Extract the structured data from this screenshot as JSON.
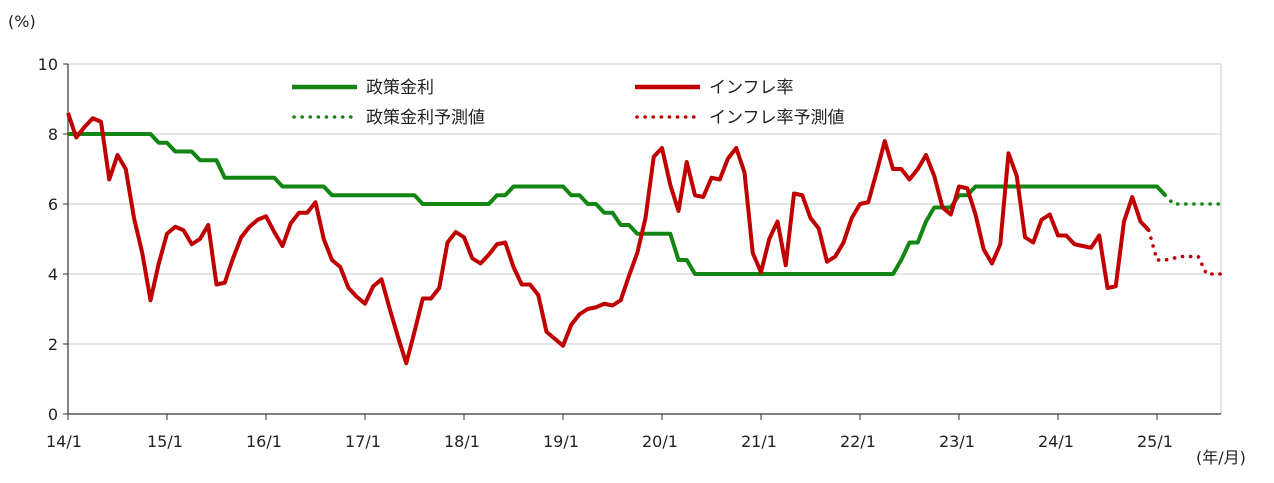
{
  "chart_data": {
    "type": "line",
    "y_unit": "(%)",
    "x_unit": "(年/月)",
    "ylim": [
      0,
      10
    ],
    "y_ticks": [
      0,
      2,
      4,
      6,
      8,
      10
    ],
    "x_ticks": [
      "14/1",
      "15/1",
      "16/1",
      "17/1",
      "18/1",
      "19/1",
      "20/1",
      "21/1",
      "22/1",
      "23/1",
      "24/1",
      "25/1"
    ],
    "x_range": [
      "2014-01",
      "2025-09"
    ],
    "grid": "horizontal",
    "legend_position": "top-center",
    "colors": {
      "policy": "#138513",
      "inflation": "#c00000"
    },
    "series": [
      {
        "name": "政策金利",
        "style": "solid",
        "color": "#138513",
        "points": [
          [
            "2014-01",
            8.0
          ],
          [
            "2014-11",
            8.0
          ],
          [
            "2014-12",
            7.75
          ],
          [
            "2015-01",
            7.75
          ],
          [
            "2015-02",
            7.5
          ],
          [
            "2015-04",
            7.5
          ],
          [
            "2015-05",
            7.25
          ],
          [
            "2015-07",
            7.25
          ],
          [
            "2015-08",
            6.75
          ],
          [
            "2016-01",
            6.75
          ],
          [
            "2016-02",
            6.75
          ],
          [
            "2016-03",
            6.5
          ],
          [
            "2016-08",
            6.5
          ],
          [
            "2016-09",
            6.25
          ],
          [
            "2017-01",
            6.25
          ],
          [
            "2017-07",
            6.25
          ],
          [
            "2017-08",
            6.0
          ],
          [
            "2018-01",
            6.0
          ],
          [
            "2018-04",
            6.0
          ],
          [
            "2018-05",
            6.25
          ],
          [
            "2018-06",
            6.25
          ],
          [
            "2018-07",
            6.5
          ],
          [
            "2018-12",
            6.5
          ],
          [
            "2019-01",
            6.5
          ],
          [
            "2019-02",
            6.25
          ],
          [
            "2019-03",
            6.25
          ],
          [
            "2019-04",
            6.0
          ],
          [
            "2019-05",
            6.0
          ],
          [
            "2019-06",
            5.75
          ],
          [
            "2019-07",
            5.75
          ],
          [
            "2019-08",
            5.4
          ],
          [
            "2019-09",
            5.4
          ],
          [
            "2019-10",
            5.15
          ],
          [
            "2020-01",
            5.15
          ],
          [
            "2020-02",
            5.15
          ],
          [
            "2020-03",
            4.4
          ],
          [
            "2020-04",
            4.4
          ],
          [
            "2020-05",
            4.0
          ],
          [
            "2020-06",
            4.0
          ],
          [
            "2021-01",
            4.0
          ],
          [
            "2022-01",
            4.0
          ],
          [
            "2022-04",
            4.0
          ],
          [
            "2022-05",
            4.0
          ],
          [
            "2022-06",
            4.4
          ],
          [
            "2022-07",
            4.9
          ],
          [
            "2022-08",
            4.9
          ],
          [
            "2022-09",
            5.5
          ],
          [
            "2022-10",
            5.9
          ],
          [
            "2022-12",
            5.9
          ],
          [
            "2023-01",
            6.25
          ],
          [
            "2023-02",
            6.25
          ],
          [
            "2023-03",
            6.5
          ],
          [
            "2024-01",
            6.5
          ],
          [
            "2025-01",
            6.5
          ],
          [
            "2025-02",
            6.25
          ]
        ]
      },
      {
        "name": "インフレ率",
        "style": "solid",
        "color": "#c00000",
        "points": [
          [
            "2014-01",
            8.6
          ],
          [
            "2014-02",
            7.9
          ],
          [
            "2014-03",
            8.2
          ],
          [
            "2014-04",
            8.45
          ],
          [
            "2014-05",
            8.35
          ],
          [
            "2014-06",
            6.7
          ],
          [
            "2014-07",
            7.4
          ],
          [
            "2014-08",
            7.0
          ],
          [
            "2014-09",
            5.6
          ],
          [
            "2014-10",
            4.6
          ],
          [
            "2014-11",
            3.25
          ],
          [
            "2014-12",
            4.3
          ],
          [
            "2015-01",
            5.15
          ],
          [
            "2015-02",
            5.35
          ],
          [
            "2015-03",
            5.25
          ],
          [
            "2015-04",
            4.85
          ],
          [
            "2015-05",
            5.0
          ],
          [
            "2015-06",
            5.4
          ],
          [
            "2015-07",
            3.7
          ],
          [
            "2015-08",
            3.75
          ],
          [
            "2015-09",
            4.45
          ],
          [
            "2015-10",
            5.05
          ],
          [
            "2015-11",
            5.35
          ],
          [
            "2015-12",
            5.55
          ],
          [
            "2016-01",
            5.65
          ],
          [
            "2016-02",
            5.2
          ],
          [
            "2016-03",
            4.8
          ],
          [
            "2016-04",
            5.45
          ],
          [
            "2016-05",
            5.75
          ],
          [
            "2016-06",
            5.75
          ],
          [
            "2016-07",
            6.05
          ],
          [
            "2016-08",
            5.0
          ],
          [
            "2016-09",
            4.4
          ],
          [
            "2016-10",
            4.2
          ],
          [
            "2016-11",
            3.6
          ],
          [
            "2016-12",
            3.35
          ],
          [
            "2017-01",
            3.15
          ],
          [
            "2017-02",
            3.65
          ],
          [
            "2017-03",
            3.85
          ],
          [
            "2017-04",
            3.0
          ],
          [
            "2017-05",
            2.2
          ],
          [
            "2017-06",
            1.45
          ],
          [
            "2017-07",
            2.35
          ],
          [
            "2017-08",
            3.3
          ],
          [
            "2017-09",
            3.3
          ],
          [
            "2017-10",
            3.6
          ],
          [
            "2017-11",
            4.9
          ],
          [
            "2017-12",
            5.2
          ],
          [
            "2018-01",
            5.05
          ],
          [
            "2018-02",
            4.45
          ],
          [
            "2018-03",
            4.3
          ],
          [
            "2018-04",
            4.55
          ],
          [
            "2018-05",
            4.85
          ],
          [
            "2018-06",
            4.9
          ],
          [
            "2018-07",
            4.2
          ],
          [
            "2018-08",
            3.7
          ],
          [
            "2018-09",
            3.7
          ],
          [
            "2018-10",
            3.4
          ],
          [
            "2018-11",
            2.35
          ],
          [
            "2018-12",
            2.15
          ],
          [
            "2019-01",
            1.95
          ],
          [
            "2019-02",
            2.55
          ],
          [
            "2019-03",
            2.85
          ],
          [
            "2019-04",
            3.0
          ],
          [
            "2019-05",
            3.05
          ],
          [
            "2019-06",
            3.15
          ],
          [
            "2019-07",
            3.1
          ],
          [
            "2019-08",
            3.25
          ],
          [
            "2019-09",
            3.95
          ],
          [
            "2019-10",
            4.6
          ],
          [
            "2019-11",
            5.6
          ],
          [
            "2019-12",
            7.35
          ],
          [
            "2020-01",
            7.6
          ],
          [
            "2020-02",
            6.55
          ],
          [
            "2020-03",
            5.8
          ],
          [
            "2020-04",
            7.2
          ],
          [
            "2020-05",
            6.25
          ],
          [
            "2020-06",
            6.2
          ],
          [
            "2020-07",
            6.75
          ],
          [
            "2020-08",
            6.7
          ],
          [
            "2020-09",
            7.3
          ],
          [
            "2020-10",
            7.6
          ],
          [
            "2020-11",
            6.9
          ],
          [
            "2020-12",
            4.6
          ],
          [
            "2021-01",
            4.05
          ],
          [
            "2021-02",
            5.0
          ],
          [
            "2021-03",
            5.5
          ],
          [
            "2021-04",
            4.25
          ],
          [
            "2021-05",
            6.3
          ],
          [
            "2021-06",
            6.25
          ],
          [
            "2021-07",
            5.6
          ],
          [
            "2021-08",
            5.3
          ],
          [
            "2021-09",
            4.35
          ],
          [
            "2021-10",
            4.5
          ],
          [
            "2021-11",
            4.9
          ],
          [
            "2021-12",
            5.6
          ],
          [
            "2022-01",
            6.0
          ],
          [
            "2022-02",
            6.05
          ],
          [
            "2022-03",
            6.9
          ],
          [
            "2022-04",
            7.8
          ],
          [
            "2022-05",
            7.0
          ],
          [
            "2022-06",
            7.0
          ],
          [
            "2022-07",
            6.7
          ],
          [
            "2022-08",
            7.0
          ],
          [
            "2022-09",
            7.4
          ],
          [
            "2022-10",
            6.8
          ],
          [
            "2022-11",
            5.9
          ],
          [
            "2022-12",
            5.7
          ],
          [
            "2023-01",
            6.5
          ],
          [
            "2023-02",
            6.45
          ],
          [
            "2023-03",
            5.7
          ],
          [
            "2023-04",
            4.7
          ],
          [
            "2023-05",
            4.3
          ],
          [
            "2023-06",
            4.85
          ],
          [
            "2023-07",
            7.45
          ],
          [
            "2023-08",
            6.8
          ],
          [
            "2023-09",
            5.05
          ],
          [
            "2023-10",
            4.9
          ],
          [
            "2023-11",
            5.55
          ],
          [
            "2023-12",
            5.7
          ],
          [
            "2024-01",
            5.1
          ],
          [
            "2024-02",
            5.1
          ],
          [
            "2024-03",
            4.85
          ],
          [
            "2024-04",
            4.8
          ],
          [
            "2024-05",
            4.75
          ],
          [
            "2024-06",
            5.1
          ],
          [
            "2024-07",
            3.6
          ],
          [
            "2024-08",
            3.65
          ],
          [
            "2024-09",
            5.5
          ],
          [
            "2024-10",
            6.2
          ],
          [
            "2024-11",
            5.5
          ],
          [
            "2024-12",
            5.25
          ]
        ]
      },
      {
        "name": "政策金利予測値",
        "style": "dotted",
        "color": "#138513",
        "points": [
          [
            "2025-02",
            6.25
          ],
          [
            "2025-03",
            6.0
          ],
          [
            "2025-06",
            6.0
          ],
          [
            "2025-09",
            6.0
          ]
        ]
      },
      {
        "name": "インフレ率予測値",
        "style": "dotted",
        "color": "#c00000",
        "points": [
          [
            "2024-12",
            5.25
          ],
          [
            "2025-01",
            4.4
          ],
          [
            "2025-02",
            4.4
          ],
          [
            "2025-03",
            4.45
          ],
          [
            "2025-04",
            4.5
          ],
          [
            "2025-05",
            4.5
          ],
          [
            "2025-06",
            4.5
          ],
          [
            "2025-07",
            4.0
          ],
          [
            "2025-08",
            4.0
          ],
          [
            "2025-09",
            4.0
          ]
        ]
      }
    ]
  }
}
